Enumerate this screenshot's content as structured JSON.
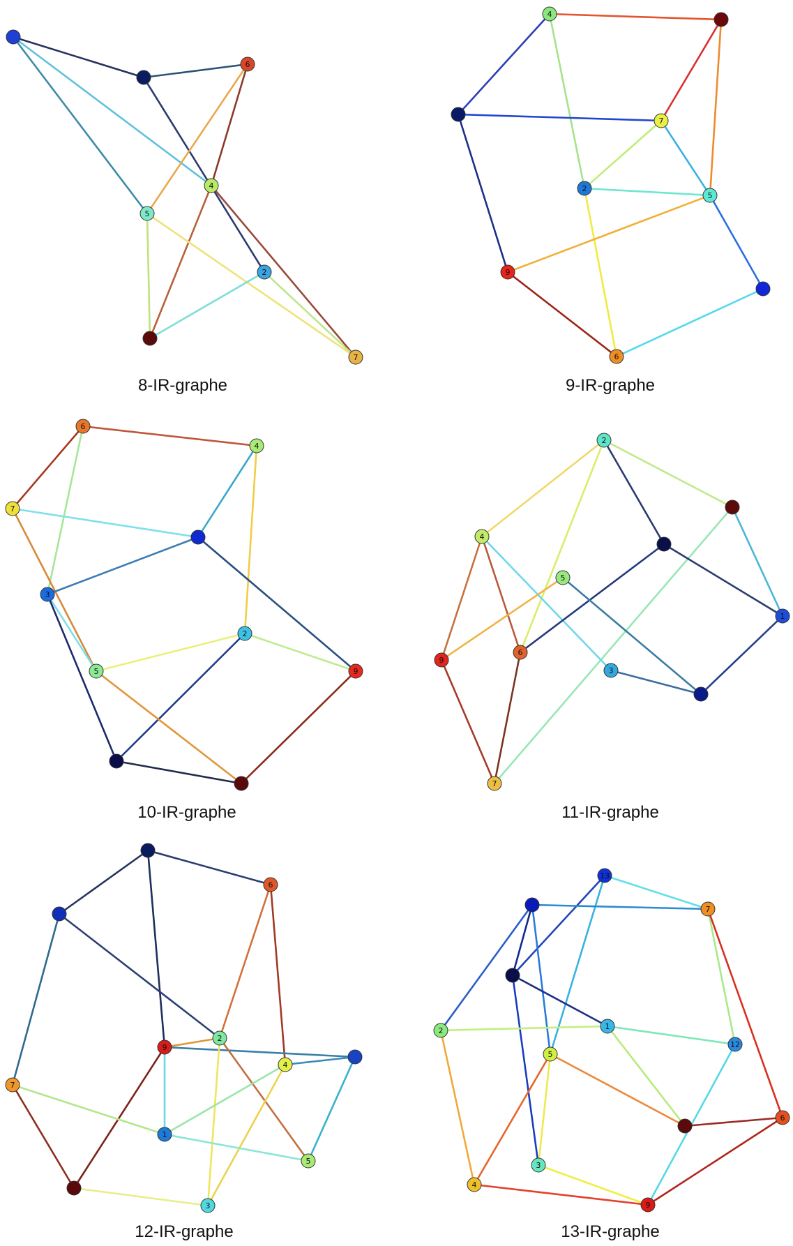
{
  "graphs": [
    {
      "caption": "8-IR-graphe",
      "nodes": [
        {
          "id": "a",
          "label": "",
          "color": "#1f3fd6"
        },
        {
          "id": "b",
          "label": "",
          "color": "#0b1d5e"
        },
        {
          "id": "6",
          "label": "6",
          "color": "#d9472b"
        },
        {
          "id": "4",
          "label": "4",
          "color": "#b9ea66"
        },
        {
          "id": "5",
          "label": "5",
          "color": "#7ee8c8"
        },
        {
          "id": "2",
          "label": "2",
          "color": "#3aa3e0"
        },
        {
          "id": "c",
          "label": "",
          "color": "#5a0a0a"
        },
        {
          "id": "7",
          "label": "7",
          "color": "#e8b244"
        }
      ],
      "edges": [
        {
          "from": "a",
          "to": "b",
          "color": "#25335f"
        },
        {
          "from": "a",
          "to": "5",
          "color": "#3d8ba8"
        },
        {
          "from": "a",
          "to": "4",
          "color": "#5fc2dd"
        },
        {
          "from": "b",
          "to": "6",
          "color": "#2e5276"
        },
        {
          "from": "b",
          "to": "2",
          "color": "#2a3c6e"
        },
        {
          "from": "6",
          "to": "5",
          "color": "#e9a849"
        },
        {
          "from": "6",
          "to": "4",
          "color": "#8a3a2a"
        },
        {
          "from": "4",
          "to": "c",
          "color": "#b8603a"
        },
        {
          "from": "4",
          "to": "7",
          "color": "#9a4a3a"
        },
        {
          "from": "5",
          "to": "c",
          "color": "#bfe37a"
        },
        {
          "from": "5",
          "to": "7",
          "color": "#f0e27a"
        },
        {
          "from": "2",
          "to": "c",
          "color": "#7fdcd8"
        },
        {
          "from": "2",
          "to": "7",
          "color": "#c0e58a"
        }
      ]
    },
    {
      "caption": "9-IR-graphe",
      "nodes": [
        {
          "id": "4",
          "label": "4",
          "color": "#8ae77c"
        },
        {
          "id": "a",
          "label": "",
          "color": "#6a0a0a"
        },
        {
          "id": "b",
          "label": "",
          "color": "#0b1a66"
        },
        {
          "id": "7",
          "label": "7",
          "color": "#e8f048"
        },
        {
          "id": "2",
          "label": "2",
          "color": "#1e78d8"
        },
        {
          "id": "5",
          "label": "5",
          "color": "#5de8d6"
        },
        {
          "id": "9",
          "label": "9",
          "color": "#e8231a"
        },
        {
          "id": "c",
          "label": "",
          "color": "#1028d8"
        },
        {
          "id": "6",
          "label": "6",
          "color": "#f08e22"
        }
      ],
      "edges": [
        {
          "from": "4",
          "to": "a",
          "color": "#e2552e"
        },
        {
          "from": "4",
          "to": "b",
          "color": "#2a3fb5"
        },
        {
          "from": "4",
          "to": "2",
          "color": "#a5e38c"
        },
        {
          "from": "a",
          "to": "7",
          "color": "#d83030"
        },
        {
          "from": "a",
          "to": "5",
          "color": "#ef8a2e"
        },
        {
          "from": "b",
          "to": "7",
          "color": "#2246cc"
        },
        {
          "from": "b",
          "to": "9",
          "color": "#1e2f86"
        },
        {
          "from": "7",
          "to": "2",
          "color": "#c2ec7a"
        },
        {
          "from": "7",
          "to": "5",
          "color": "#3ab2e0"
        },
        {
          "from": "2",
          "to": "5",
          "color": "#6fe6d2"
        },
        {
          "from": "2",
          "to": "6",
          "color": "#f2ea40"
        },
        {
          "from": "5",
          "to": "9",
          "color": "#f0b03a"
        },
        {
          "from": "5",
          "to": "c",
          "color": "#2a6fe0"
        },
        {
          "from": "9",
          "to": "6",
          "color": "#9c2418"
        },
        {
          "from": "c",
          "to": "6",
          "color": "#56d8ec"
        }
      ]
    },
    {
      "caption": "10-IR-graphe",
      "nodes": [
        {
          "id": "6",
          "label": "6",
          "color": "#e8772c"
        },
        {
          "id": "4",
          "label": "4",
          "color": "#a8ea76"
        },
        {
          "id": "7",
          "label": "7",
          "color": "#f0e03c"
        },
        {
          "id": "a",
          "label": "",
          "color": "#0e2ad0"
        },
        {
          "id": "3",
          "label": "3",
          "color": "#1c6be0"
        },
        {
          "id": "2",
          "label": "2",
          "color": "#3bc2e4"
        },
        {
          "id": "5",
          "label": "5",
          "color": "#8cea96"
        },
        {
          "id": "9",
          "label": "9",
          "color": "#e82a1e"
        },
        {
          "id": "b",
          "label": "",
          "color": "#0a0f4a"
        },
        {
          "id": "c",
          "label": "",
          "color": "#5a0a0a"
        }
      ],
      "edges": [
        {
          "from": "6",
          "to": "4",
          "color": "#c0553a"
        },
        {
          "from": "6",
          "to": "7",
          "color": "#a43a1e"
        },
        {
          "from": "6",
          "to": "3",
          "color": "#a6e69a"
        },
        {
          "from": "4",
          "to": "a",
          "color": "#3aa8cc"
        },
        {
          "from": "4",
          "to": "2",
          "color": "#f0cc48"
        },
        {
          "from": "7",
          "to": "a",
          "color": "#7ee0ea"
        },
        {
          "from": "7",
          "to": "5",
          "color": "#d68a3a"
        },
        {
          "from": "a",
          "to": "3",
          "color": "#3a7cb4"
        },
        {
          "from": "a",
          "to": "9",
          "color": "#2a4e7e"
        },
        {
          "from": "3",
          "to": "5",
          "color": "#7de0ec"
        },
        {
          "from": "3",
          "to": "b",
          "color": "#1c2a6a"
        },
        {
          "from": "2",
          "to": "5",
          "color": "#eaf07a"
        },
        {
          "from": "2",
          "to": "9",
          "color": "#c0ea8c"
        },
        {
          "from": "2",
          "to": "b",
          "color": "#1e3c8a"
        },
        {
          "from": "5",
          "to": "c",
          "color": "#e0963a"
        },
        {
          "from": "9",
          "to": "c",
          "color": "#8a2a1a"
        },
        {
          "from": "b",
          "to": "c",
          "color": "#222a4e"
        }
      ]
    },
    {
      "caption": "11-IR-graphe",
      "nodes": [
        {
          "id": "2",
          "label": "2",
          "color": "#5ee4c8"
        },
        {
          "id": "a",
          "label": "",
          "color": "#5c0a0a"
        },
        {
          "id": "4",
          "label": "4",
          "color": "#c2ec66"
        },
        {
          "id": "b",
          "label": "",
          "color": "#0a0f4a"
        },
        {
          "id": "5",
          "label": "5",
          "color": "#9ae880"
        },
        {
          "id": "1",
          "label": "1",
          "color": "#1c4ed8"
        },
        {
          "id": "9",
          "label": "9",
          "color": "#e0261c"
        },
        {
          "id": "6",
          "label": "6",
          "color": "#e2622c"
        },
        {
          "id": "3",
          "label": "3",
          "color": "#34a8dc"
        },
        {
          "id": "c",
          "label": "",
          "color": "#0a1a88"
        },
        {
          "id": "7",
          "label": "7",
          "color": "#ecbe44"
        }
      ],
      "edges": [
        {
          "from": "2",
          "to": "a",
          "color": "#c4e88a"
        },
        {
          "from": "2",
          "to": "4",
          "color": "#f0d86a"
        },
        {
          "from": "2",
          "to": "b",
          "color": "#2a3c6e"
        },
        {
          "from": "2",
          "to": "6",
          "color": "#dcec6a"
        },
        {
          "from": "a",
          "to": "1",
          "color": "#4ab6d8"
        },
        {
          "from": "a",
          "to": "7",
          "color": "#98e6b6"
        },
        {
          "from": "4",
          "to": "9",
          "color": "#c8703a"
        },
        {
          "from": "4",
          "to": "6",
          "color": "#b85a3a"
        },
        {
          "from": "4",
          "to": "3",
          "color": "#6ed8e8"
        },
        {
          "from": "b",
          "to": "1",
          "color": "#2a3c6e"
        },
        {
          "from": "b",
          "to": "6",
          "color": "#243a7a"
        },
        {
          "from": "5",
          "to": "9",
          "color": "#f0b444"
        },
        {
          "from": "5",
          "to": "c",
          "color": "#3a7ca4"
        },
        {
          "from": "1",
          "to": "c",
          "color": "#22408a"
        },
        {
          "from": "9",
          "to": "7",
          "color": "#a63a2a"
        },
        {
          "from": "6",
          "to": "7",
          "color": "#7a3420"
        },
        {
          "from": "3",
          "to": "c",
          "color": "#3a6c9c"
        }
      ]
    },
    {
      "caption": "12-IR-graphe",
      "nodes": [
        {
          "id": "a",
          "label": "",
          "color": "#0a1a5e"
        },
        {
          "id": "6",
          "label": "6",
          "color": "#e0582a"
        },
        {
          "id": "b",
          "label": "",
          "color": "#1030b8"
        },
        {
          "id": "2",
          "label": "2",
          "color": "#7ee8a0"
        },
        {
          "id": "9",
          "label": "9",
          "color": "#d81c18"
        },
        {
          "id": "4",
          "label": "4",
          "color": "#e2f04a"
        },
        {
          "id": "c",
          "label": "",
          "color": "#1844c4"
        },
        {
          "id": "7",
          "label": "7",
          "color": "#f0962a"
        },
        {
          "id": "1",
          "label": "1",
          "color": "#1c7ad8"
        },
        {
          "id": "5",
          "label": "5",
          "color": "#a8ea76"
        },
        {
          "id": "d",
          "label": "",
          "color": "#5a0a0a"
        },
        {
          "id": "3",
          "label": "3",
          "color": "#52d8e0"
        }
      ],
      "edges": [
        {
          "from": "a",
          "to": "b",
          "color": "#25335f"
        },
        {
          "from": "a",
          "to": "6",
          "color": "#2a3c6e"
        },
        {
          "from": "a",
          "to": "9",
          "color": "#1e2f5e"
        },
        {
          "from": "b",
          "to": "2",
          "color": "#2c4070"
        },
        {
          "from": "b",
          "to": "7",
          "color": "#2e6a8c"
        },
        {
          "from": "6",
          "to": "2",
          "color": "#d2703a"
        },
        {
          "from": "6",
          "to": "4",
          "color": "#a13a26"
        },
        {
          "from": "9",
          "to": "2",
          "color": "#e0963a"
        },
        {
          "from": "9",
          "to": "c",
          "color": "#3a7fa6"
        },
        {
          "from": "9",
          "to": "1",
          "color": "#6ad8e6"
        },
        {
          "from": "9",
          "to": "d",
          "color": "#7a2418"
        },
        {
          "from": "2",
          "to": "5",
          "color": "#c07040"
        },
        {
          "from": "2",
          "to": "3",
          "color": "#f0e460"
        },
        {
          "from": "4",
          "to": "c",
          "color": "#3a8ab8"
        },
        {
          "from": "4",
          "to": "1",
          "color": "#9ae6a6"
        },
        {
          "from": "4",
          "to": "3",
          "color": "#ecd24e"
        },
        {
          "from": "c",
          "to": "5",
          "color": "#3ab0cc"
        },
        {
          "from": "7",
          "to": "1",
          "color": "#b4e68c"
        },
        {
          "from": "7",
          "to": "d",
          "color": "#8a3020"
        },
        {
          "from": "1",
          "to": "5",
          "color": "#8ae6d4"
        },
        {
          "from": "d",
          "to": "3",
          "color": "#e8ee8a"
        }
      ]
    },
    {
      "caption": "13-IR-graphe",
      "nodes": [
        {
          "id": "13",
          "label": "13",
          "color": "#1030d8"
        },
        {
          "id": "a",
          "label": "",
          "color": "#0a1ab8"
        },
        {
          "id": "7",
          "label": "7",
          "color": "#f08e22"
        },
        {
          "id": "b",
          "label": "",
          "color": "#0a0f4a"
        },
        {
          "id": "1",
          "label": "1",
          "color": "#38b6e6"
        },
        {
          "id": "2",
          "label": "2",
          "color": "#8aea7e"
        },
        {
          "id": "12",
          "label": "12",
          "color": "#2a8ae0"
        },
        {
          "id": "5",
          "label": "5",
          "color": "#d0ee44"
        },
        {
          "id": "c",
          "label": "",
          "color": "#5a0a0a"
        },
        {
          "id": "6",
          "label": "6",
          "color": "#e6501c"
        },
        {
          "id": "3",
          "label": "3",
          "color": "#66e6c0"
        },
        {
          "id": "4",
          "label": "4",
          "color": "#f0c02a"
        },
        {
          "id": "9",
          "label": "9",
          "color": "#dc1a18"
        }
      ],
      "edges": [
        {
          "from": "13",
          "to": "7",
          "color": "#62dfe8"
        },
        {
          "from": "13",
          "to": "b",
          "color": "#2244b8"
        },
        {
          "from": "13",
          "to": "5",
          "color": "#38b2e0"
        },
        {
          "from": "a",
          "to": "7",
          "color": "#2a8ad0"
        },
        {
          "from": "a",
          "to": "b",
          "color": "#142a8a"
        },
        {
          "from": "a",
          "to": "2",
          "color": "#2a5ec8"
        },
        {
          "from": "a",
          "to": "5",
          "color": "#2a7ad8"
        },
        {
          "from": "7",
          "to": "12",
          "color": "#a8ea8a"
        },
        {
          "from": "7",
          "to": "6",
          "color": "#d8301e"
        },
        {
          "from": "b",
          "to": "1",
          "color": "#1e2f86"
        },
        {
          "from": "b",
          "to": "3",
          "color": "#1a3cc0"
        },
        {
          "from": "1",
          "to": "2",
          "color": "#c4ee7c"
        },
        {
          "from": "1",
          "to": "12",
          "color": "#7ee6b8"
        },
        {
          "from": "1",
          "to": "c",
          "color": "#b8ea7c"
        },
        {
          "from": "2",
          "to": "4",
          "color": "#f0a83a"
        },
        {
          "from": "12",
          "to": "9",
          "color": "#56d8e6"
        },
        {
          "from": "5",
          "to": "c",
          "color": "#ec8a3a"
        },
        {
          "from": "5",
          "to": "3",
          "color": "#f0e850"
        },
        {
          "from": "5",
          "to": "4",
          "color": "#e8642a"
        },
        {
          "from": "c",
          "to": "6",
          "color": "#9a2a26"
        },
        {
          "from": "6",
          "to": "9",
          "color": "#b0261c"
        },
        {
          "from": "3",
          "to": "9",
          "color": "#eef040"
        },
        {
          "from": "4",
          "to": "9",
          "color": "#e4402a"
        }
      ]
    }
  ]
}
